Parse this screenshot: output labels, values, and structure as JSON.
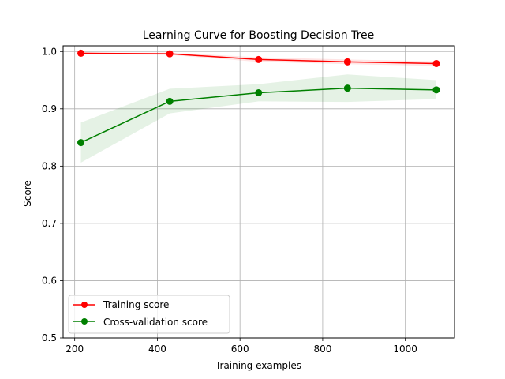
{
  "chart_data": {
    "type": "line",
    "title": "Learning Curve for Boosting Decision Tree",
    "xlabel": "Training examples",
    "ylabel": "Score",
    "xlim": [
      172,
      1119
    ],
    "ylim": [
      0.5,
      1.01
    ],
    "x_ticks": [
      200,
      400,
      600,
      800,
      1000
    ],
    "y_ticks": [
      0.5,
      0.6,
      0.7,
      0.8,
      0.9,
      1.0
    ],
    "x_tick_labels": [
      "200",
      "400",
      "600",
      "800",
      "1000"
    ],
    "y_tick_labels": [
      "0.5",
      "0.6",
      "0.7",
      "0.8",
      "0.9",
      "1.0"
    ],
    "grid": true,
    "legend_position": "lower-left",
    "x": [
      215,
      430,
      645,
      860,
      1075
    ],
    "series": [
      {
        "name": "Training score",
        "color": "#ff0000",
        "values": [
          0.997,
          0.996,
          0.986,
          0.982,
          0.979
        ],
        "band_lower": [
          0.996,
          0.994,
          0.982,
          0.978,
          0.975
        ],
        "band_upper": [
          0.998,
          0.998,
          0.99,
          0.986,
          0.983
        ]
      },
      {
        "name": "Cross-validation score",
        "color": "#008000",
        "values": [
          0.841,
          0.913,
          0.928,
          0.936,
          0.933
        ],
        "band_lower": [
          0.806,
          0.892,
          0.913,
          0.912,
          0.917
        ],
        "band_upper": [
          0.876,
          0.935,
          0.943,
          0.96,
          0.95
        ]
      }
    ]
  }
}
